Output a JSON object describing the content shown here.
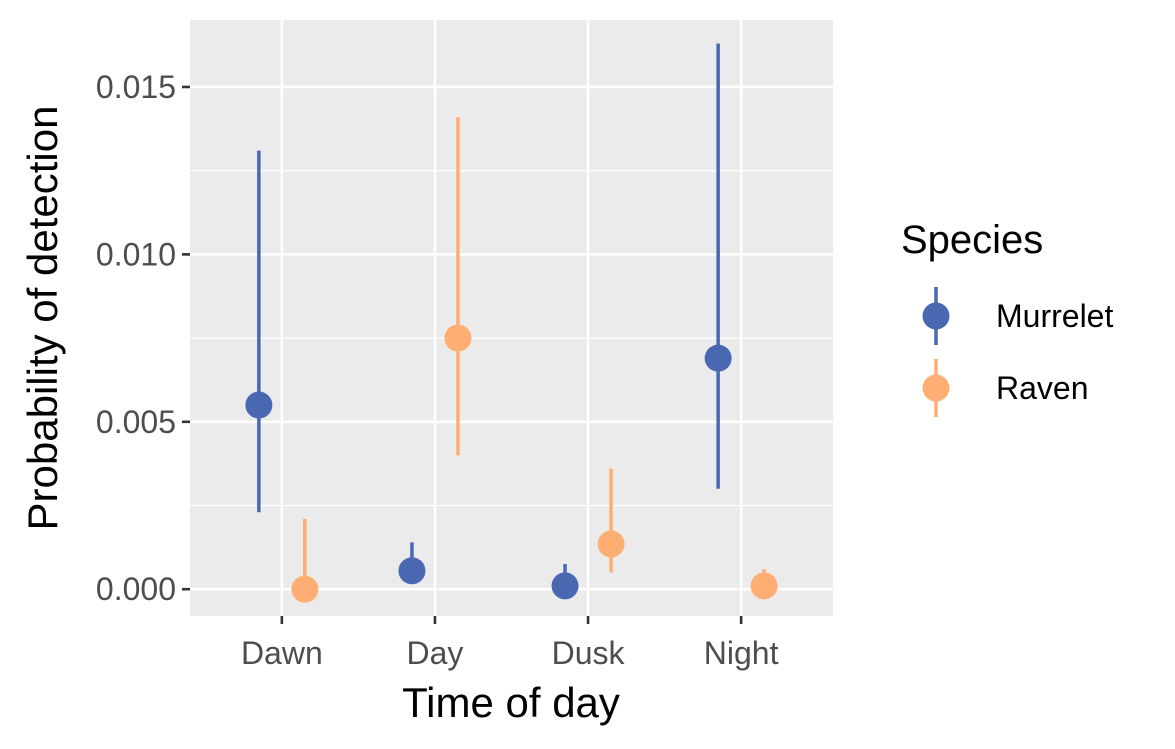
{
  "chart_data": {
    "type": "scatter",
    "subtype": "pointrange",
    "xlabel": "Time of day",
    "ylabel": "Probability of detection",
    "categories": [
      "Dawn",
      "Day",
      "Dusk",
      "Night"
    ],
    "ylim": [
      -0.0008,
      0.017
    ],
    "yticks": [
      0.0,
      0.005,
      0.01,
      0.015
    ],
    "ytick_labels": [
      "0.000",
      "0.005",
      "0.010",
      "0.015"
    ],
    "grid": true,
    "legend": {
      "title": "Species",
      "position": "right"
    },
    "series": [
      {
        "name": "Murrelet",
        "color": "#4a67b2",
        "values": [
          0.0055,
          0.00055,
          0.0001,
          0.0069
        ],
        "lower": [
          0.0023,
          0.0003,
          0.0,
          0.003
        ],
        "upper": [
          0.0131,
          0.0014,
          0.00075,
          0.0163
        ]
      },
      {
        "name": "Raven",
        "color": "#ffae73",
        "values": [
          0.0,
          0.0075,
          0.00135,
          0.0001
        ],
        "lower": [
          0.0,
          0.004,
          0.0005,
          0.0
        ],
        "upper": [
          0.0021,
          0.0141,
          0.0036,
          0.0006
        ]
      }
    ]
  }
}
